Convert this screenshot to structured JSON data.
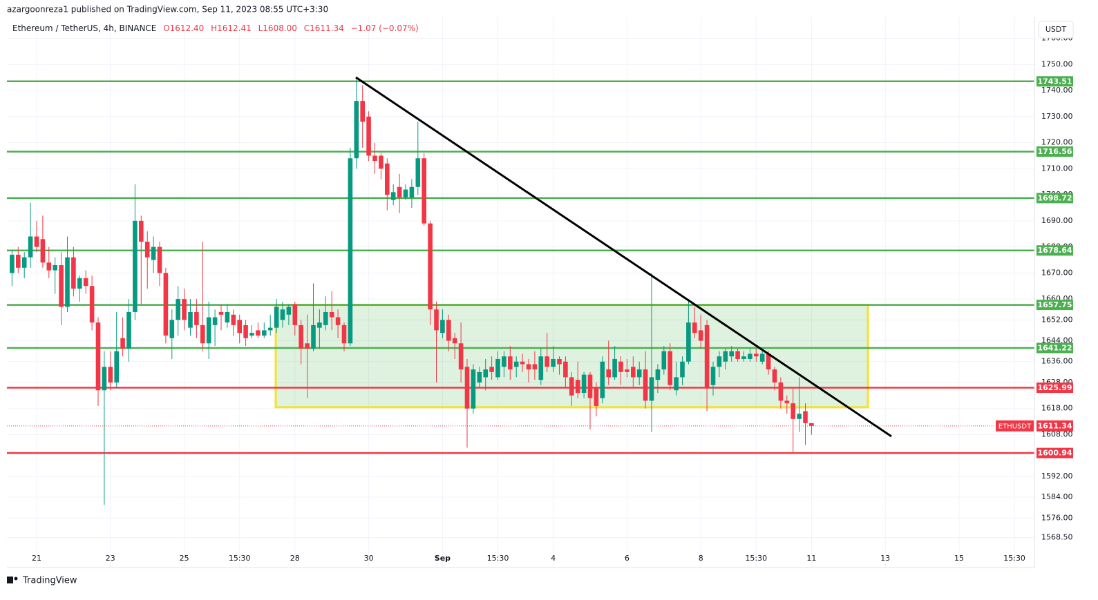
{
  "chart_data": {
    "type": "candlestick",
    "published": "azargoonreza1 published on TradingView.com, Sep 11, 2023 08:55 UTC+3:30",
    "symbol": "Ethereum / TetherUS, 4h, BINANCE",
    "ohlc_header": [
      "O1612.40",
      "H1612.41",
      "L1608.00",
      "C1611.34",
      "−1.07 (−0.07%)"
    ],
    "currency": "USDT",
    "footer": "TradingView",
    "up_color": "#089981",
    "down_color": "#f23645",
    "categories": [
      null,
      null,
      null,
      null,
      "21",
      null,
      null,
      null,
      null,
      null,
      null,
      null,
      null,
      null,
      null,
      null,
      "23",
      null,
      null,
      null,
      null,
      null,
      null,
      null,
      null,
      null,
      null,
      null,
      "25",
      null,
      null,
      null,
      null,
      null,
      null,
      null,
      null,
      "15:30",
      null,
      null,
      null,
      null,
      null,
      null,
      null,
      null,
      "28",
      null,
      null,
      null,
      null,
      null,
      null,
      null,
      null,
      null,
      null,
      null,
      "30",
      null,
      null,
      null,
      null,
      null,
      null,
      null,
      null,
      null,
      null,
      null,
      "Sep",
      null,
      null,
      null,
      null,
      null,
      null,
      null,
      null,
      "15:30",
      null,
      null,
      null,
      null,
      null,
      null,
      null,
      null,
      "4",
      null,
      null,
      null,
      null,
      null,
      null,
      null,
      null,
      null,
      null,
      null,
      "6",
      null,
      null,
      null,
      null,
      null,
      null,
      null,
      null,
      null,
      null,
      null,
      "8",
      null,
      null,
      null,
      null,
      null,
      null,
      null,
      null,
      "15:30",
      null,
      null,
      null,
      null,
      null,
      null,
      null,
      null,
      "11",
      null,
      null,
      null,
      null,
      null,
      null,
      null,
      null,
      null,
      null,
      null,
      "13",
      null,
      null,
      null,
      null,
      null,
      null,
      null,
      null,
      null,
      null,
      null,
      "15",
      null,
      null,
      null,
      null,
      null,
      null,
      null,
      null,
      "15:30",
      null,
      null
    ],
    "ohlc": [
      [
        1670,
        1679,
        1665,
        1677
      ],
      [
        1677,
        1680,
        1670,
        1672
      ],
      [
        1672,
        1678,
        1668,
        1676
      ],
      [
        1676,
        1697,
        1672,
        1684
      ],
      [
        1684,
        1690,
        1678,
        1680
      ],
      [
        1683,
        1692,
        1672,
        1674
      ],
      [
        1674,
        1680,
        1668,
        1671
      ],
      [
        1671,
        1676,
        1662,
        1673
      ],
      [
        1673,
        1678,
        1650,
        1657
      ],
      [
        1657,
        1684,
        1655,
        1676
      ],
      [
        1676,
        1680,
        1661,
        1664
      ],
      [
        1664,
        1669,
        1659,
        1668
      ],
      [
        1668,
        1671,
        1662,
        1665
      ],
      [
        1665,
        1669,
        1648,
        1651
      ],
      [
        1651,
        1653,
        1619,
        1625
      ],
      [
        1625,
        1640,
        1581,
        1634
      ],
      [
        1634,
        1640,
        1625,
        1628
      ],
      [
        1628,
        1655,
        1626,
        1640
      ],
      [
        1645,
        1653,
        1638,
        1641
      ],
      [
        1641,
        1660,
        1636,
        1655
      ],
      [
        1655,
        1704,
        1652,
        1690
      ],
      [
        1690,
        1692,
        1658,
        1682
      ],
      [
        1682,
        1686,
        1664,
        1676
      ],
      [
        1675,
        1684,
        1670,
        1680
      ],
      [
        1680,
        1682,
        1665,
        1670
      ],
      [
        1670,
        1672,
        1643,
        1646
      ],
      [
        1645,
        1656,
        1637,
        1652
      ],
      [
        1652,
        1665,
        1646,
        1660
      ],
      [
        1660,
        1664,
        1648,
        1652
      ],
      [
        1649,
        1660,
        1646,
        1655
      ],
      [
        1655,
        1660,
        1645,
        1650
      ],
      [
        1650,
        1682,
        1640,
        1643
      ],
      [
        1643,
        1659,
        1637,
        1653
      ],
      [
        1650,
        1656,
        1642,
        1653
      ],
      [
        1655,
        1658,
        1648,
        1654
      ],
      [
        1651,
        1658,
        1649,
        1655
      ],
      [
        1654,
        1656,
        1646,
        1650
      ],
      [
        1652,
        1654,
        1643,
        1647
      ],
      [
        1650,
        1652,
        1642,
        1645
      ],
      [
        1646,
        1650,
        1645,
        1647
      ],
      [
        1648,
        1651,
        1645,
        1646
      ],
      [
        1646,
        1651,
        1645,
        1648
      ],
      [
        1648,
        1654,
        1646,
        1649
      ],
      [
        1649,
        1660,
        1647,
        1657
      ],
      [
        1652,
        1659,
        1649,
        1656
      ],
      [
        1654,
        1658,
        1650,
        1657
      ],
      [
        1658,
        1659,
        1646,
        1650
      ],
      [
        1650,
        1652,
        1635,
        1641
      ],
      [
        1643,
        1654,
        1622,
        1641
      ],
      [
        1641,
        1666,
        1640,
        1650
      ],
      [
        1649,
        1656,
        1641,
        1651
      ],
      [
        1650,
        1661,
        1648,
        1655
      ],
      [
        1655,
        1663,
        1648,
        1653
      ],
      [
        1653,
        1656,
        1645,
        1650
      ],
      [
        1650,
        1651,
        1640,
        1643
      ],
      [
        1643,
        1718,
        1642,
        1714
      ],
      [
        1714,
        1745,
        1710,
        1736
      ],
      [
        1736,
        1742,
        1718,
        1728
      ],
      [
        1730,
        1732,
        1713,
        1715
      ],
      [
        1715,
        1720,
        1708,
        1713
      ],
      [
        1715,
        1716,
        1706,
        1710
      ],
      [
        1712,
        1714,
        1694,
        1700
      ],
      [
        1698,
        1704,
        1696,
        1701
      ],
      [
        1703,
        1708,
        1693,
        1699
      ],
      [
        1699,
        1704,
        1698,
        1702
      ],
      [
        1699,
        1706,
        1695,
        1703
      ],
      [
        1703,
        1728,
        1700,
        1714
      ],
      [
        1714,
        1716,
        1688,
        1689
      ],
      [
        1689,
        1690,
        1650,
        1656
      ],
      [
        1656,
        1659,
        1628,
        1648
      ],
      [
        1647,
        1656,
        1645,
        1652
      ],
      [
        1652,
        1654,
        1640,
        1644
      ],
      [
        1645,
        1647,
        1637,
        1643
      ],
      [
        1643,
        1651,
        1628,
        1633
      ],
      [
        1634,
        1637,
        1603,
        1618
      ],
      [
        1618,
        1635,
        1616,
        1633
      ],
      [
        1628,
        1634,
        1626,
        1632
      ],
      [
        1630,
        1637,
        1625,
        1633
      ],
      [
        1634,
        1638,
        1629,
        1632
      ],
      [
        1630,
        1640,
        1629,
        1637
      ],
      [
        1634,
        1640,
        1630,
        1638
      ],
      [
        1638,
        1642,
        1629,
        1633
      ],
      [
        1634,
        1638,
        1630,
        1636
      ],
      [
        1636,
        1639,
        1632,
        1635
      ],
      [
        1635,
        1637,
        1628,
        1633
      ],
      [
        1635,
        1640,
        1629,
        1633
      ],
      [
        1629,
        1641,
        1627,
        1638
      ],
      [
        1638,
        1647,
        1632,
        1634
      ],
      [
        1634,
        1642,
        1632,
        1637
      ],
      [
        1637,
        1638,
        1631,
        1635
      ],
      [
        1636,
        1638,
        1626,
        1630
      ],
      [
        1630,
        1632,
        1619,
        1623
      ],
      [
        1629,
        1636,
        1622,
        1624
      ],
      [
        1624,
        1632,
        1622,
        1631
      ],
      [
        1631,
        1632,
        1610,
        1622
      ],
      [
        1626,
        1628,
        1615,
        1619
      ],
      [
        1622,
        1638,
        1620,
        1636
      ],
      [
        1633,
        1644,
        1627,
        1630
      ],
      [
        1630,
        1642,
        1629,
        1637
      ],
      [
        1636,
        1638,
        1627,
        1632
      ],
      [
        1633,
        1637,
        1630,
        1632
      ],
      [
        1634,
        1638,
        1626,
        1630
      ],
      [
        1630,
        1636,
        1627,
        1633
      ],
      [
        1633,
        1640,
        1618,
        1621
      ],
      [
        1621,
        1670,
        1609,
        1630
      ],
      [
        1629,
        1635,
        1624,
        1633
      ],
      [
        1633,
        1642,
        1631,
        1640
      ],
      [
        1640,
        1643,
        1625,
        1627
      ],
      [
        1625,
        1636,
        1623,
        1630
      ],
      [
        1630,
        1638,
        1627,
        1636
      ],
      [
        1636,
        1660,
        1635,
        1651
      ],
      [
        1651,
        1657,
        1645,
        1647
      ],
      [
        1648,
        1654,
        1641,
        1644
      ],
      [
        1650,
        1652,
        1617,
        1626
      ],
      [
        1627,
        1636,
        1623,
        1634
      ],
      [
        1634,
        1640,
        1630,
        1638
      ],
      [
        1636,
        1641,
        1633,
        1640
      ],
      [
        1638,
        1642,
        1636,
        1640
      ],
      [
        1640,
        1641,
        1636,
        1637
      ],
      [
        1637,
        1640,
        1636,
        1638
      ],
      [
        1637,
        1641,
        1636,
        1639
      ],
      [
        1639,
        1641,
        1636,
        1638
      ],
      [
        1636,
        1641,
        1635,
        1639
      ],
      [
        1639,
        1640,
        1631,
        1633
      ],
      [
        1633,
        1634,
        1625,
        1628
      ],
      [
        1628,
        1630,
        1618,
        1621
      ],
      [
        1621,
        1623,
        1616,
        1620
      ],
      [
        1620,
        1626,
        1601,
        1614
      ],
      [
        1614,
        1630,
        1609,
        1616
      ],
      [
        1617,
        1620,
        1604,
        1612.4
      ],
      [
        1612.4,
        1612.41,
        1608,
        1611.34
      ],
      null,
      null,
      null,
      null,
      null,
      null,
      null,
      null,
      null,
      null,
      null,
      null,
      null,
      null,
      null,
      null,
      null,
      null,
      null,
      null,
      null,
      null,
      null,
      null,
      null,
      null,
      null,
      null,
      null,
      null,
      null,
      null,
      null,
      null,
      null
    ],
    "ylim": [
      1557,
      1762
    ],
    "yticks": [
      {
        "value": 1760,
        "label": "1760.00"
      },
      {
        "value": 1750,
        "label": "1750.00"
      },
      {
        "value": 1740,
        "label": "1740.00"
      },
      {
        "value": 1730,
        "label": "1730.00"
      },
      {
        "value": 1720,
        "label": "1720.00"
      },
      {
        "value": 1710,
        "label": "1710.00"
      },
      {
        "value": 1700,
        "label": "1700.00"
      },
      {
        "value": 1690,
        "label": "1690.00"
      },
      {
        "value": 1680,
        "label": "1680.00"
      },
      {
        "value": 1670,
        "label": "1670.00"
      },
      {
        "value": 1660,
        "label": "1660.00"
      },
      {
        "value": 1652,
        "label": "1652.00"
      },
      {
        "value": 1644,
        "label": "1644.00"
      },
      {
        "value": 1636,
        "label": "1636.00"
      },
      {
        "value": 1628,
        "label": "1628.00"
      },
      {
        "value": 1618,
        "label": "1618.00"
      },
      {
        "value": 1608,
        "label": "1608.00"
      },
      {
        "value": 1592,
        "label": "1592.00"
      },
      {
        "value": 1584,
        "label": "1584.00"
      },
      {
        "value": 1576,
        "label": "1576.00"
      },
      {
        "value": 1568.5,
        "label": "1568.50"
      }
    ],
    "grid": true,
    "levels": {
      "values": [
        1743.51,
        1716.56,
        1698.72,
        1678.64,
        1657.75,
        1641.22,
        1625.99,
        1600.94
      ],
      "colors": [
        "#4caf50",
        "#4caf50",
        "#4caf50",
        "#4caf50",
        "#4caf50",
        "#4caf50",
        "#f23645",
        "#f23645"
      ]
    },
    "last_price": {
      "name": "ETHUSDT",
      "value": 1611.34,
      "color": "#f23645"
    }
  }
}
